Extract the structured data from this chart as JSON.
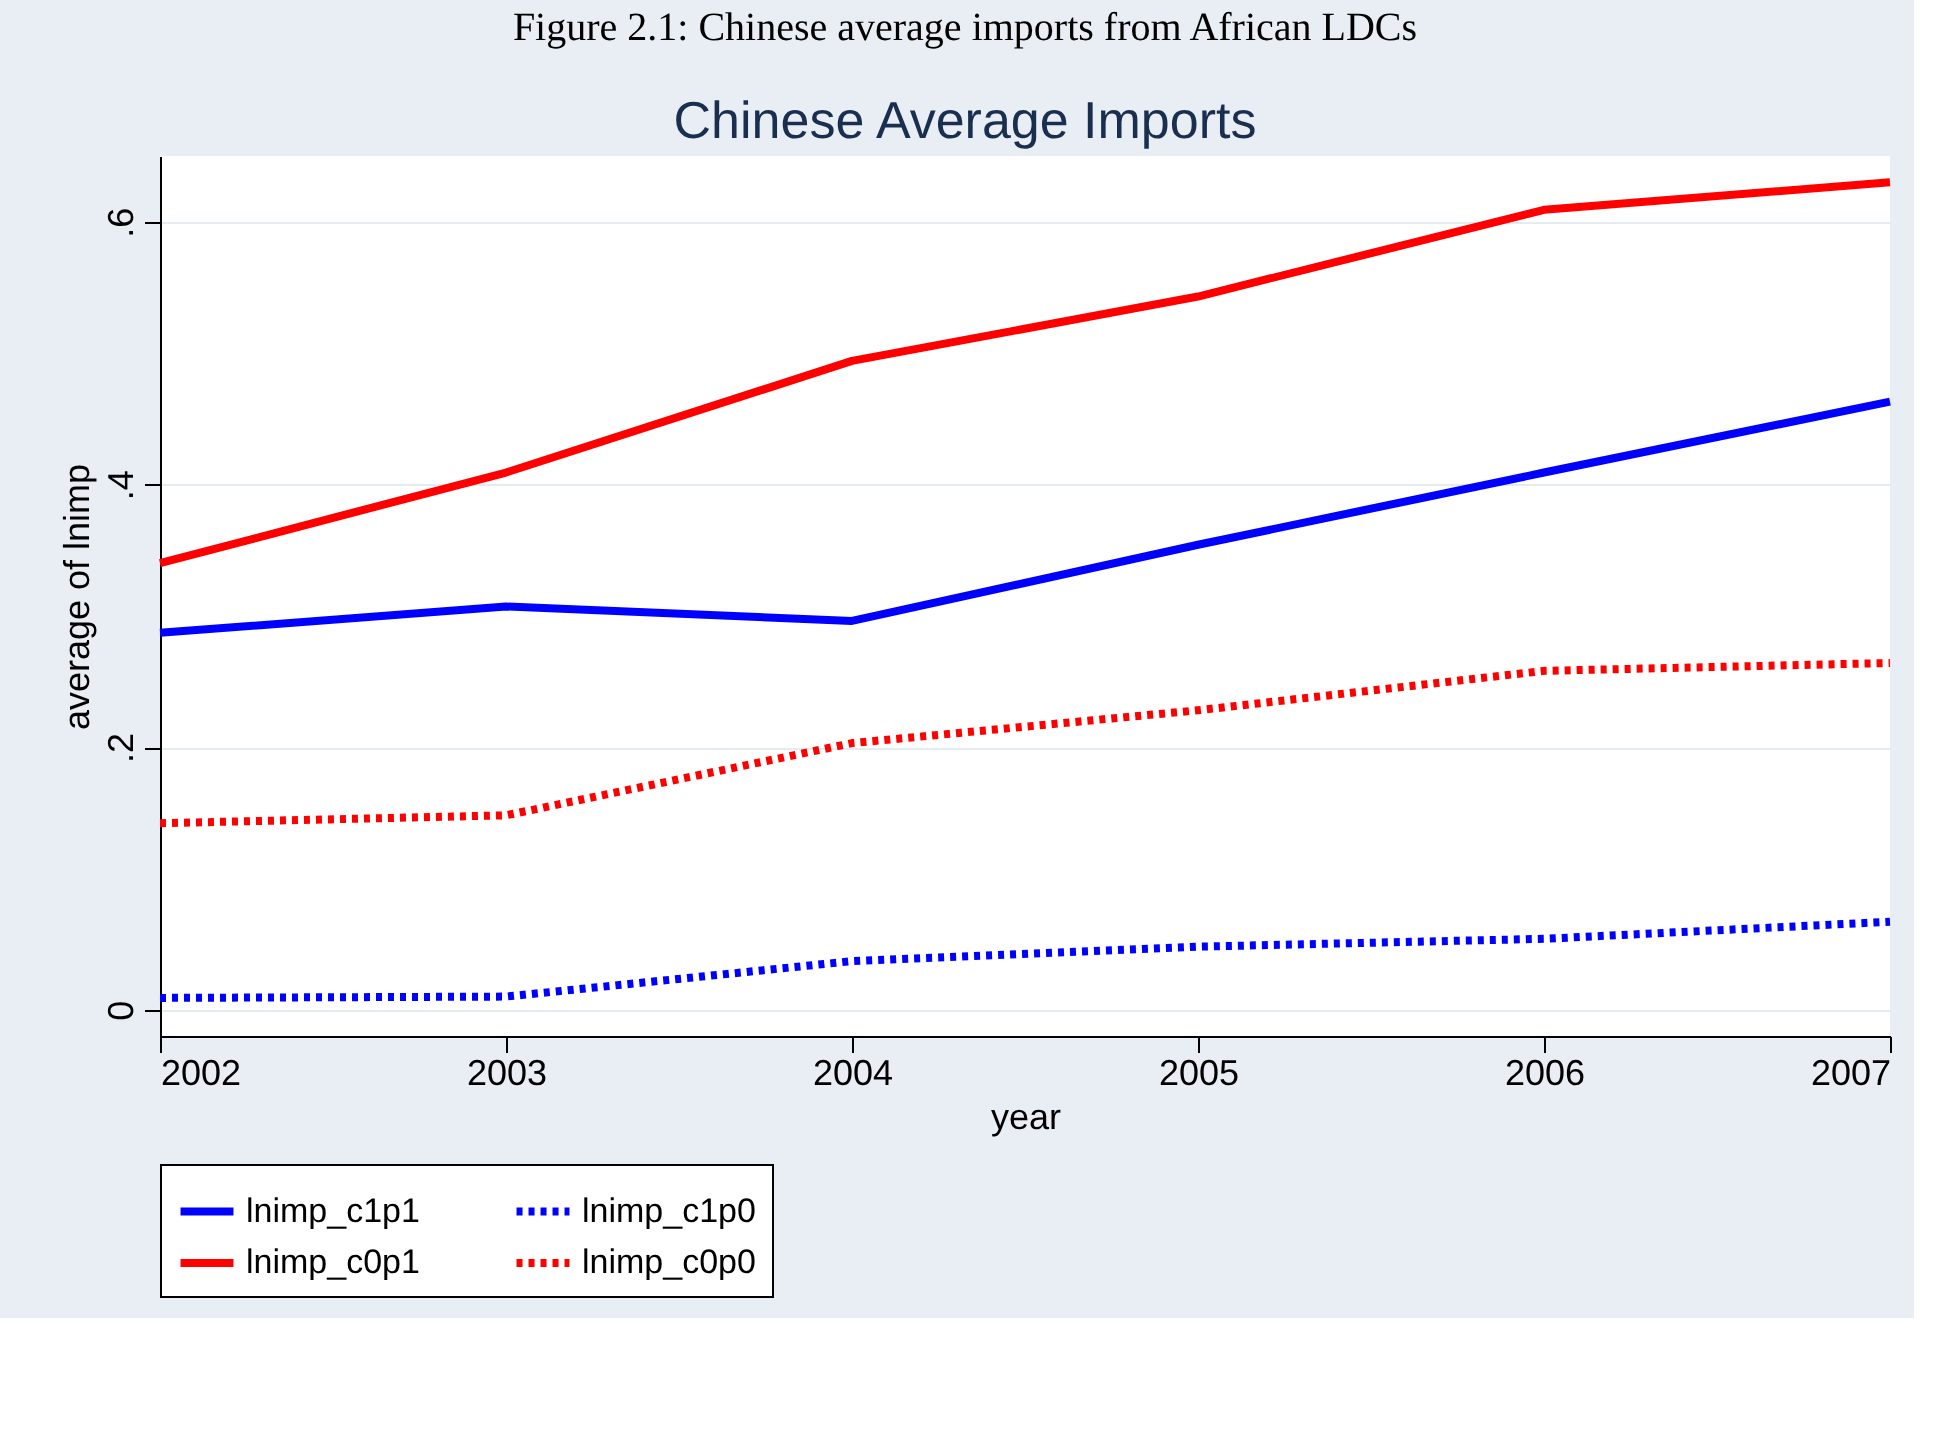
{
  "chart_data": {
    "type": "line",
    "title": "Chinese Average Imports",
    "xlabel": "year",
    "ylabel": "average of lnimp",
    "annotations": [
      "Figure 2.1: Chinese average imports from African LDCs"
    ],
    "x": [
      2002,
      2003,
      2004,
      2005,
      2006,
      2007
    ],
    "series": [
      {
        "name": "lnimp_c1p1",
        "color": "#0000ff",
        "line_style": "solid",
        "values": [
          0.287,
          0.307,
          0.296,
          0.354,
          0.409,
          0.463
        ]
      },
      {
        "name": "lnimp_c1p0",
        "color": "#0000ff",
        "line_style": "dotted",
        "values": [
          0.009,
          0.01,
          0.037,
          0.048,
          0.054,
          0.067
        ]
      },
      {
        "name": "lnimp_c0p1",
        "color": "#ff0000",
        "line_style": "solid",
        "values": [
          0.34,
          0.409,
          0.494,
          0.543,
          0.609,
          0.63
        ]
      },
      {
        "name": "lnimp_c0p0",
        "color": "#ff0000",
        "line_style": "dotted",
        "values": [
          0.142,
          0.148,
          0.203,
          0.228,
          0.258,
          0.264
        ]
      }
    ],
    "xlim": [
      2002,
      2007
    ],
    "xticks": [
      2002,
      2003,
      2004,
      2005,
      2006,
      2007
    ],
    "ylim": [
      -0.02,
      0.65
    ],
    "yticks": [
      {
        "value": 0,
        "label": "0"
      },
      {
        "value": 0.2,
        "label": ".2"
      },
      {
        "value": 0.4,
        "label": ".4"
      },
      {
        "value": 0.6,
        "label": ".6"
      }
    ],
    "grid": "y",
    "legend": "bottom",
    "marker": "none"
  }
}
